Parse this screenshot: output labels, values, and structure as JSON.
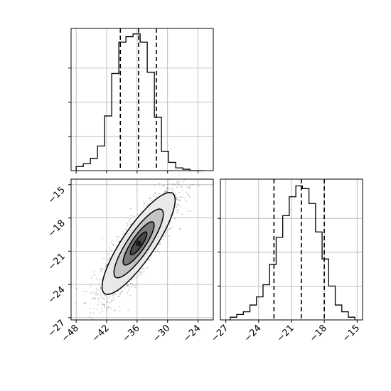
{
  "chart_data": {
    "type": "corner",
    "parameters": [
      "",
      ""
    ],
    "grid": true,
    "panels": [
      {
        "panel": "hist-param-1",
        "type": "histogram",
        "xlim": [
          -49,
          -21
        ],
        "bin_edges": [
          -48,
          -46.6,
          -45.2,
          -43.8,
          -42.4,
          -41,
          -39.6,
          -38.2,
          -36.8,
          -35.4,
          -34,
          -32.6,
          -31.2,
          -29.8,
          -28.4,
          -27,
          -25.6,
          -24.2,
          -22.8
        ],
        "counts": [
          3,
          5,
          9,
          18,
          40,
          71,
          94,
          98,
          100,
          94,
          72,
          39,
          14,
          6,
          2,
          1,
          0,
          0
        ],
        "quantiles": [
          -39.3,
          -35.7,
          -32.2
        ],
        "ytick_values": [
          25,
          50,
          75
        ],
        "ymax": 104
      },
      {
        "panel": "hist-param-2",
        "type": "histogram",
        "xlim": [
          -27.5,
          -14.5
        ],
        "bin_edges": [
          -26.6,
          -26.0,
          -25.4,
          -24.8,
          -24.2,
          -23.6,
          -23.0,
          -22.4,
          -21.8,
          -21.2,
          -20.6,
          -20.0,
          -19.4,
          -18.8,
          -18.2,
          -17.6,
          -17.0,
          -16.4,
          -15.8,
          -15.2
        ],
        "counts": [
          2,
          4,
          6,
          11,
          17,
          26,
          41,
          61,
          77,
          91,
          99,
          97,
          86,
          65,
          45,
          25,
          11,
          6,
          2
        ],
        "quantiles": [
          -22.6,
          -20.1,
          -18.0
        ],
        "ytick_values": [
          25,
          50,
          75
        ],
        "ymax": 104
      },
      {
        "panel": "joint-param-1-param-2",
        "type": "2d-density",
        "xlim": [
          -49,
          -21
        ],
        "ylim": [
          -27.2,
          -14.5
        ],
        "mean": [
          -35.7,
          -20.3
        ],
        "std": [
          3.6,
          2.3
        ],
        "correlation": 0.85,
        "density_levels": [
          0.39,
          0.86,
          0.99,
          1.0
        ],
        "point_color": "#555555"
      }
    ],
    "tick_labels": {
      "param1": [
        "−48",
        "−42",
        "−36",
        "−30",
        "−24"
      ],
      "param1_values": [
        -48,
        -42,
        -36,
        -30,
        -24
      ],
      "param2": [
        "−27",
        "−24",
        "−21",
        "−18",
        "−15"
      ],
      "param2_values": [
        -27,
        -24,
        -21,
        -18,
        -15
      ]
    }
  },
  "colors": {
    "histogram_line": "#000000",
    "quantile_line": "#000000",
    "grid": "#b0b0b0",
    "density_fill_light": "#e9e9e9",
    "density_fill_mid": "#c4c4c4",
    "density_fill_dark": "#7a7a7a",
    "density_peak": "#1a1a1a"
  }
}
